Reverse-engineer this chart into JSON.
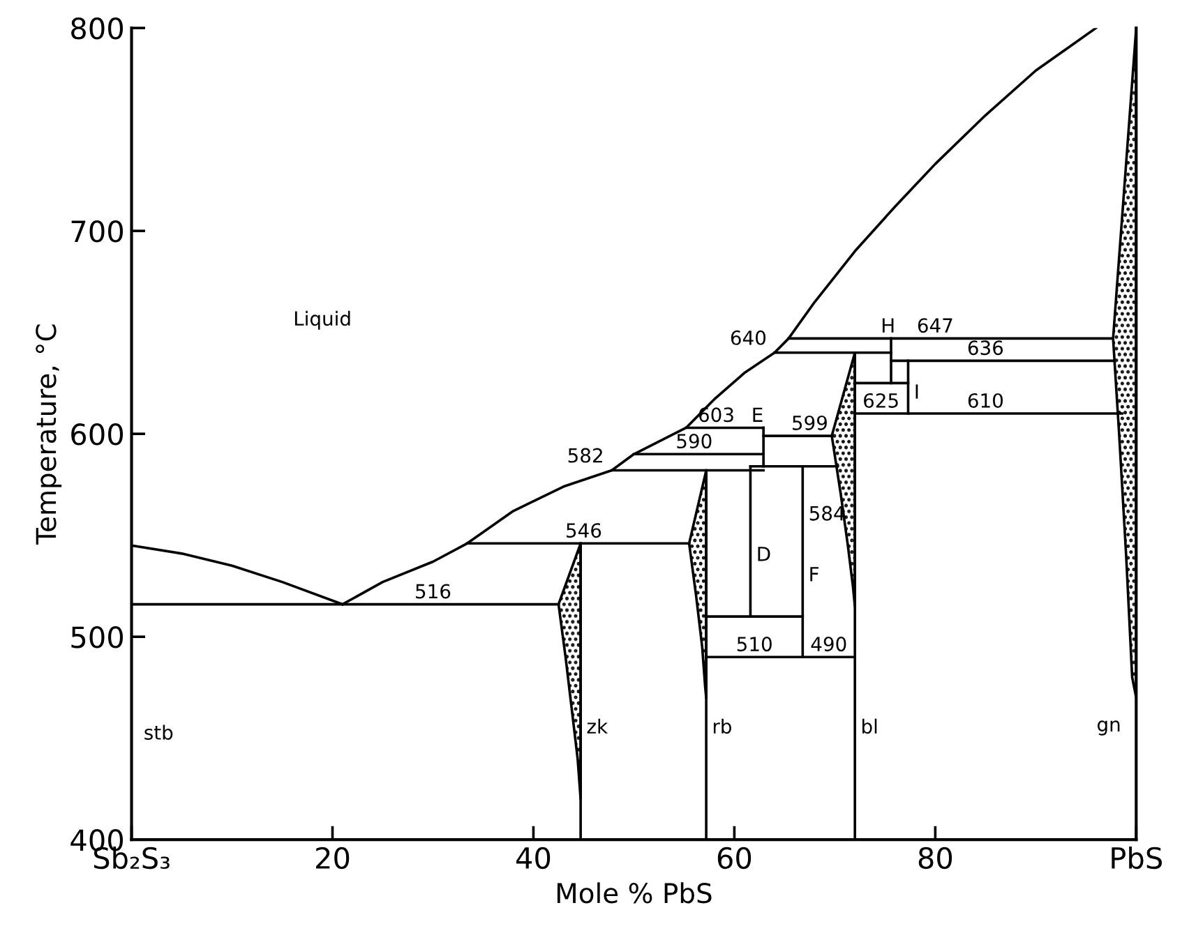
{
  "chart_data": {
    "type": "line",
    "xlabel": "Mole % PbS",
    "ylabel": "Temperature, °C",
    "xlim": [
      0,
      100
    ],
    "ylim": [
      400,
      800
    ],
    "xticks": [
      {
        "value": 0,
        "label": "Sb₂S₃"
      },
      20,
      40,
      60,
      80,
      {
        "value": 100,
        "label": "PbS"
      }
    ],
    "yticks": [
      400,
      500,
      600,
      700,
      800
    ],
    "grid": false,
    "legend": false,
    "marker": "none",
    "line_style": "solid",
    "series": [
      {
        "color": "#000000",
        "x": [
          0,
          5,
          10,
          15,
          21
        ],
        "values": [
          545,
          541,
          535,
          527,
          516
        ]
      },
      {
        "color": "#000000",
        "x": [
          21,
          25,
          30,
          33.4,
          38,
          43,
          47.8,
          50,
          55.2,
          58,
          61,
          64,
          65.4,
          68,
          72,
          76,
          80,
          85,
          90,
          96
        ],
        "values": [
          516,
          527,
          537,
          546,
          562,
          574,
          582,
          590,
          603,
          617,
          630,
          640,
          647,
          665,
          690,
          712,
          733,
          757,
          779,
          800
        ]
      },
      {
        "color": "#000000",
        "x": [
          0,
          42.5
        ],
        "values": [
          516,
          516
        ]
      },
      {
        "color": "#000000",
        "x": [
          33.4,
          55.5
        ],
        "values": [
          546,
          546
        ]
      },
      {
        "color": "#000000",
        "x": [
          47.8,
          62.9
        ],
        "values": [
          582,
          582
        ]
      },
      {
        "color": "#000000",
        "x": [
          50,
          62.9
        ],
        "values": [
          590,
          590
        ]
      },
      {
        "color": "#000000",
        "x": [
          55.2,
          62.9
        ],
        "values": [
          603,
          603
        ]
      },
      {
        "color": "#000000",
        "x": [
          62.9,
          69.7
        ],
        "values": [
          599,
          599
        ]
      },
      {
        "color": "#000000",
        "x": [
          61.6,
          70.3
        ],
        "values": [
          584,
          584
        ]
      },
      {
        "color": "#000000",
        "x": [
          57.2,
          66.8
        ],
        "values": [
          510,
          510
        ]
      },
      {
        "color": "#000000",
        "x": [
          57.2,
          72
        ],
        "values": [
          490,
          490
        ]
      },
      {
        "color": "#000000",
        "x": [
          64,
          75.6
        ],
        "values": [
          640,
          640
        ]
      },
      {
        "color": "#000000",
        "x": [
          65.4,
          97.7
        ],
        "values": [
          647,
          647
        ]
      },
      {
        "color": "#000000",
        "x": [
          75.6,
          97.7
        ],
        "values": [
          636,
          636
        ]
      },
      {
        "color": "#000000",
        "x": [
          72,
          77.3
        ],
        "values": [
          625,
          625
        ]
      },
      {
        "color": "#000000",
        "x": [
          72,
          98.6
        ],
        "values": [
          610,
          610
        ]
      },
      {
        "color": "#000000",
        "x": [
          44.7,
          44.7
        ],
        "values": [
          400,
          546
        ]
      },
      {
        "color": "#000000",
        "x": [
          57.2,
          57.2
        ],
        "values": [
          400,
          582
        ]
      },
      {
        "color": "#000000",
        "x": [
          72,
          72
        ],
        "values": [
          400,
          640
        ]
      },
      {
        "color": "#000000",
        "x": [
          61.6,
          61.6
        ],
        "values": [
          510,
          584
        ]
      },
      {
        "color": "#000000",
        "x": [
          66.8,
          66.8
        ],
        "values": [
          490,
          584
        ]
      },
      {
        "color": "#000000",
        "x": [
          62.9,
          62.9
        ],
        "values": [
          584,
          603
        ]
      },
      {
        "color": "#000000",
        "x": [
          75.6,
          75.6
        ],
        "values": [
          625,
          647
        ]
      },
      {
        "color": "#000000",
        "x": [
          77.3,
          77.3
        ],
        "values": [
          610,
          636
        ]
      },
      {
        "type": "area",
        "color": "#000000",
        "x": [
          44.7,
          42.5,
          43.2,
          43.8,
          44.4,
          44.7
        ],
        "values": [
          546,
          516,
          490,
          465,
          440,
          420
        ]
      },
      {
        "type": "area",
        "color": "#000000",
        "x": [
          57.2,
          55.5,
          56.2,
          56.8,
          57.1,
          57.2
        ],
        "values": [
          582,
          546,
          520,
          495,
          475,
          470
        ]
      },
      {
        "type": "area",
        "color": "#000000",
        "x": [
          72,
          69.7,
          70.6,
          71.3,
          71.8,
          72
        ],
        "values": [
          640,
          599,
          570,
          545,
          525,
          515
        ]
      },
      {
        "type": "area",
        "color": "#000000",
        "x": [
          100,
          97.7,
          98.3,
          99,
          99.6,
          100
        ],
        "values": [
          800,
          647,
          600,
          540,
          480,
          470
        ]
      }
    ],
    "annotations": [
      "Liquid",
      {
        "text": "516",
        "x": 30,
        "y": 516
      },
      {
        "text": "546",
        "x": 45,
        "y": 546
      },
      {
        "text": "582",
        "x": 47.8,
        "y": 582
      },
      {
        "text": "590",
        "x": 56,
        "y": 590
      },
      {
        "text": "603",
        "x": 58.2,
        "y": 603
      },
      {
        "text": "599",
        "x": 67.5,
        "y": 599
      },
      {
        "text": "584",
        "x": 66.8,
        "y": 560
      },
      {
        "text": "510",
        "x": 62,
        "y": 490
      },
      {
        "text": "490",
        "x": 69.4,
        "y": 490
      },
      {
        "text": "640",
        "x": 64,
        "y": 640
      },
      {
        "text": "647",
        "x": 80,
        "y": 647
      },
      {
        "text": "636",
        "x": 85,
        "y": 636
      },
      {
        "text": "625",
        "x": 74.6,
        "y": 610
      },
      {
        "text": "610",
        "x": 85,
        "y": 610
      },
      "stb",
      {
        "text": "zk",
        "x": 44.7,
        "y": 455
      },
      {
        "text": "rb",
        "x": 57.2,
        "y": 455
      },
      {
        "text": "bl",
        "x": 72,
        "y": 455
      },
      "gn",
      {
        "text": "D",
        "x": 61.6,
        "y": 540
      },
      {
        "text": "F",
        "x": 66.8,
        "y": 530
      },
      {
        "text": "E",
        "x": 62.3,
        "y": 603
      },
      {
        "text": "H",
        "x": 75.3,
        "y": 647
      },
      {
        "text": "I",
        "x": 77.3,
        "y": 620
      }
    ]
  }
}
